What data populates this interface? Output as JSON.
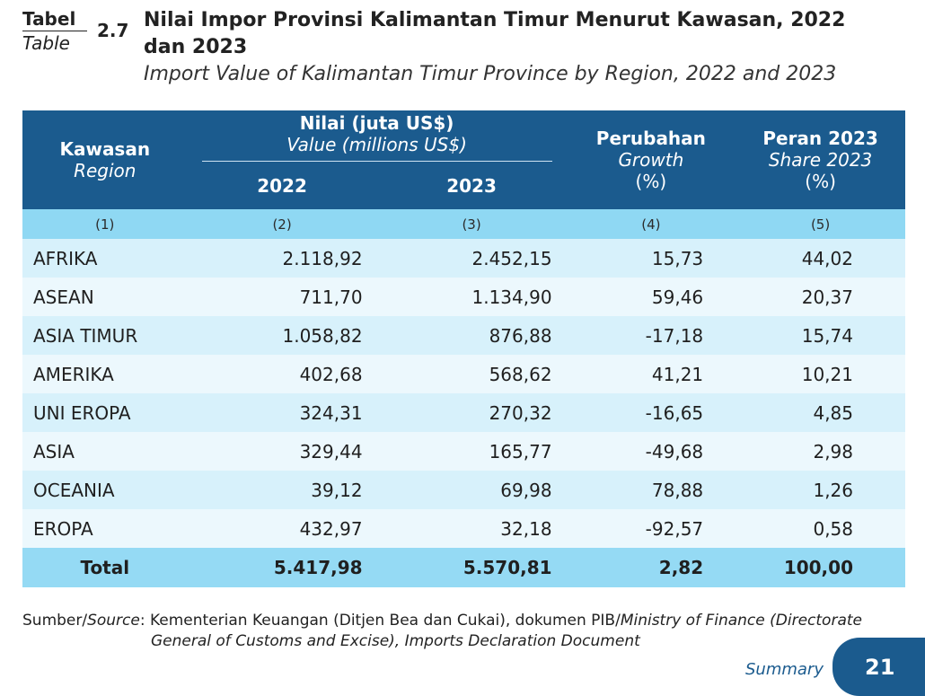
{
  "header": {
    "label_id": "Tabel",
    "label_en": "Table",
    "number": "2.7",
    "title_id_line1": "Nilai Impor Provinsi Kalimantan Timur Menurut Kawasan, 2022",
    "title_id_line2": "dan 2023",
    "title_en": "Import Value of Kalimantan Timur Province by Region, 2022 and 2023"
  },
  "table": {
    "col_region_id": "Kawasan",
    "col_region_en": "Region",
    "col_value_id": "Nilai (juta US$)",
    "col_value_en": "Value (millions US$)",
    "col_2022": "2022",
    "col_2023": "2023",
    "col_growth_id": "Perubahan",
    "col_growth_en": "Growth",
    "col_growth_unit": "(%)",
    "col_share_id": "Peran 2023",
    "col_share_en": "Share 2023",
    "col_share_unit": "(%)",
    "col_numbers": [
      "(1)",
      "(2)",
      "(3)",
      "(4)",
      "(5)"
    ],
    "rows": [
      {
        "region": "AFRIKA",
        "v2022": "2.118,92",
        "v2023": "2.452,15",
        "growth": "15,73",
        "share": "44,02"
      },
      {
        "region": "ASEAN",
        "v2022": "711,70",
        "v2023": "1.134,90",
        "growth": "59,46",
        "share": "20,37"
      },
      {
        "region": "ASIA TIMUR",
        "v2022": "1.058,82",
        "v2023": "876,88",
        "growth": "-17,18",
        "share": "15,74"
      },
      {
        "region": "AMERIKA",
        "v2022": "402,68",
        "v2023": "568,62",
        "growth": "41,21",
        "share": "10,21"
      },
      {
        "region": "UNI EROPA",
        "v2022": "324,31",
        "v2023": "270,32",
        "growth": "-16,65",
        "share": "4,85"
      },
      {
        "region": "ASIA",
        "v2022": "329,44",
        "v2023": "165,77",
        "growth": "-49,68",
        "share": "2,98"
      },
      {
        "region": "OCEANIA",
        "v2022": "39,12",
        "v2023": "69,98",
        "growth": "78,88",
        "share": "1,26"
      },
      {
        "region": "EROPA",
        "v2022": "432,97",
        "v2023": "32,18",
        "growth": "-92,57",
        "share": "0,58"
      }
    ],
    "total": {
      "label": "Total",
      "v2022": "5.417,98",
      "v2023": "5.570,81",
      "growth": "2,82",
      "share": "100,00"
    }
  },
  "source": {
    "prefix_id": "Sumber/",
    "prefix_en": "Source",
    "text_id": ": Kementerian Keuangan (Ditjen Bea dan Cukai), dokumen PIB/",
    "text_en_line1": "Ministry of Finance (Directorate",
    "text_en_line2": "General of Customs and Excise), Imports Declaration Document"
  },
  "footer": {
    "summary": "Summary",
    "page_number": "21"
  },
  "colors": {
    "header_bg": "#1b5b8e",
    "number_row_bg": "#8fd8f3",
    "row_odd_bg": "#d7f1fb",
    "row_even_bg": "#ecf8fd",
    "total_bg": "#95daf4"
  }
}
